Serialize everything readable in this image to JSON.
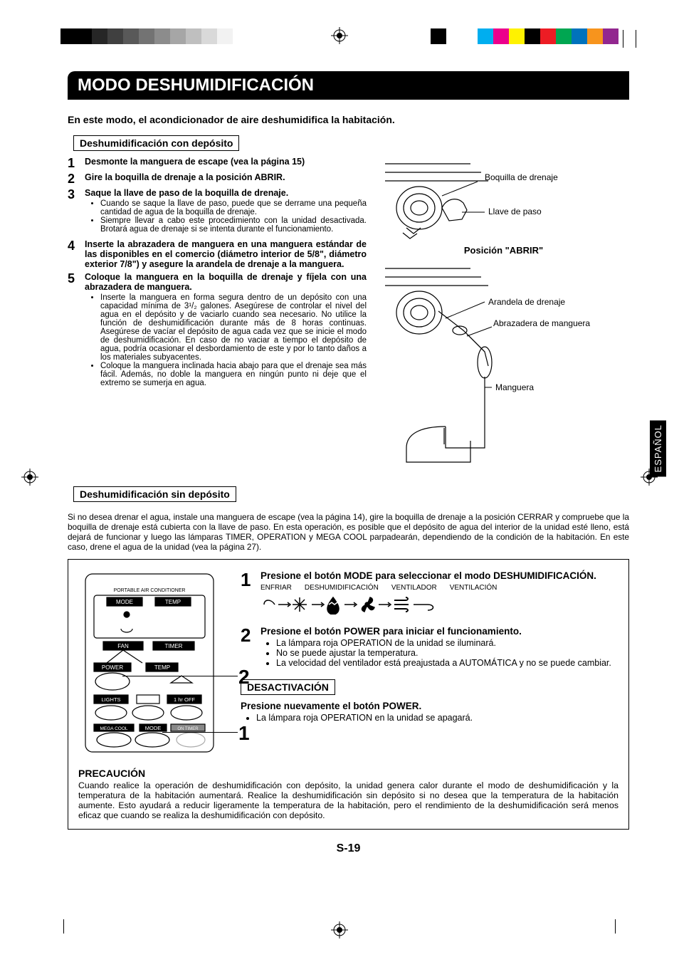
{
  "title": "MODO DESHUMIDIFICACIÓN",
  "language_tab": "ESPAÑOL",
  "page_number": "S-19",
  "intro": "En este modo, el acondicionador de aire deshumidifica la habitación.",
  "section_with": "Deshumidificación con depósito",
  "section_without": "Deshumidificación sin depósito",
  "steps": [
    {
      "n": "1",
      "title": "Desmonte la manguera de escape (vea la página 15)",
      "bullets": []
    },
    {
      "n": "2",
      "title": "Gire la boquilla de drenaje a la posición ABRIR.",
      "bullets": []
    },
    {
      "n": "3",
      "title": "Saque la llave de paso de la boquilla de drenaje.",
      "bullets": [
        "Cuando se saque la llave de paso, puede que se derrame una pequeña cantidad de agua de la boquilla de drenaje.",
        "Siempre llevar a cabo este procedimiento con la unidad desactivada. Brotará agua de drenaje si se intenta durante el funcionamiento."
      ]
    },
    {
      "n": "4",
      "title": "Inserte la abrazadera de manguera en una manguera estándar de las disponibles en el comercio (diámetro interior de 5/8\", diámetro exterior 7/8\") y asegure la arandela de drenaje a la manguera.",
      "bullets": []
    },
    {
      "n": "5",
      "title": "Coloque la manguera en la boquilla de drenaje y fíjela con una abrazadera de manguera.",
      "bullets": [
        "Inserte la manguera en forma segura dentro de un depósito con una capacidad mínima de 3¹/₂ galones. Asegúrese de controlar el nivel del agua en el depósito y de vaciarlo cuando sea necesario. No utilice la función de deshumidificación durante más de 8 horas continuas. Asegúrese de vacíar el depósito de agua cada vez que se inicie el modo de deshumidificación. En caso de no vaciar a tiempo el depósito de agua, podría ocasionar el desbordamiento de este y por lo tanto daños a los materiales subyacentes.",
        "Coloque la manguera inclinada hacia abajo para que el drenaje sea más fácil. Además, no doble la manguera en ningún punto ni deje que el extremo se sumerja en agua."
      ]
    }
  ],
  "diagram1": {
    "label_nozzle": "Boquilla de drenaje",
    "label_stopcock": "Llave de paso",
    "caption": "Posición \"ABRIR\""
  },
  "diagram2": {
    "label_washer": "Arandela de drenaje",
    "label_clamp": "Abrazadera de manguera",
    "label_hose": "Manguera"
  },
  "no_deposit_text": "Si no desea drenar el agua, instale una manguera de escape (vea la página 14), gire la boquilla de drenaje a la posición CERRAR y compruebe que la boquilla de drenaje está cubierta con la llave de paso. En esta operación, es posible que el depósito de agua del interior de la unidad esté lleno, está dejará de funcionar y luego las lámparas TIMER, OPERATION y MEGA COOL parpadearán, dependiendo de la condición de la habitación. En este caso, drene el agua de la unidad (vea la página 27).",
  "remote": {
    "brand": "PORTABLE AIR CONDITIONER",
    "labels": {
      "mode_top": "MODE",
      "temp_top": "TEMP",
      "fan": "FAN",
      "timer": "TIMER",
      "power": "POWER",
      "temp": "TEMP",
      "lights": "LIGHTS",
      "hr_off": "1 hr OFF",
      "mega_cool": "MEGA COOL",
      "mode_bot": "MODE",
      "on_timer": "ON TIMER"
    }
  },
  "op_steps": [
    {
      "n": "1",
      "title": "Presione el botón MODE para seleccionar el modo DESHUMIDIFICACIÓN.",
      "modes": [
        "ENFRIAR",
        "DESHUMIDIFICACIÓN",
        "VENTILADOR",
        "VENTILACIÓN"
      ],
      "bullets": []
    },
    {
      "n": "2",
      "title": "Presione el botón POWER para iniciar el funcionamiento.",
      "bullets": [
        "La lámpara roja OPERATION de la unidad se iluminará.",
        "No se puede ajustar la temperatura.",
        "La velocidad del ventilador está preajustada a AUTOMÁTICA y no se puede cambiar."
      ]
    }
  ],
  "deactivate_label": "DESACTIVACIÓN",
  "deactivate_title": "Presione nuevamente el botón POWER.",
  "deactivate_bullet": "La lámpara roja OPERATION en la unidad se apagará.",
  "precaution_label": "PRECAUCIÓN",
  "precaution_text": "Cuando realice la operación de deshumidificación con depósito, la unidad genera calor durante el modo de deshumidificación y la temperatura de la habitación aumentará. Realice la deshumidificación sin depósito si no desea que la temperatura de la habitación aumente. Esto ayudará a reducir ligeramente la temperatura de la habitación, pero el rendimiento de la deshumidificación será menos eficaz que cuando se realiza la deshumidificación con depósito.",
  "grayscale_bar": [
    "#000000",
    "#000000",
    "#262626",
    "#404040",
    "#595959",
    "#737373",
    "#8c8c8c",
    "#a6a6a6",
    "#bfbfbf",
    "#d9d9d9",
    "#f2f2f2"
  ],
  "color_bar": [
    "#000000",
    "#ffffff",
    "#ffffff",
    "#00aeef",
    "#ec008c",
    "#fff200",
    "#000000",
    "#ed1c24",
    "#00a651",
    "#0072bc",
    "#f7941d",
    "#92278f"
  ]
}
